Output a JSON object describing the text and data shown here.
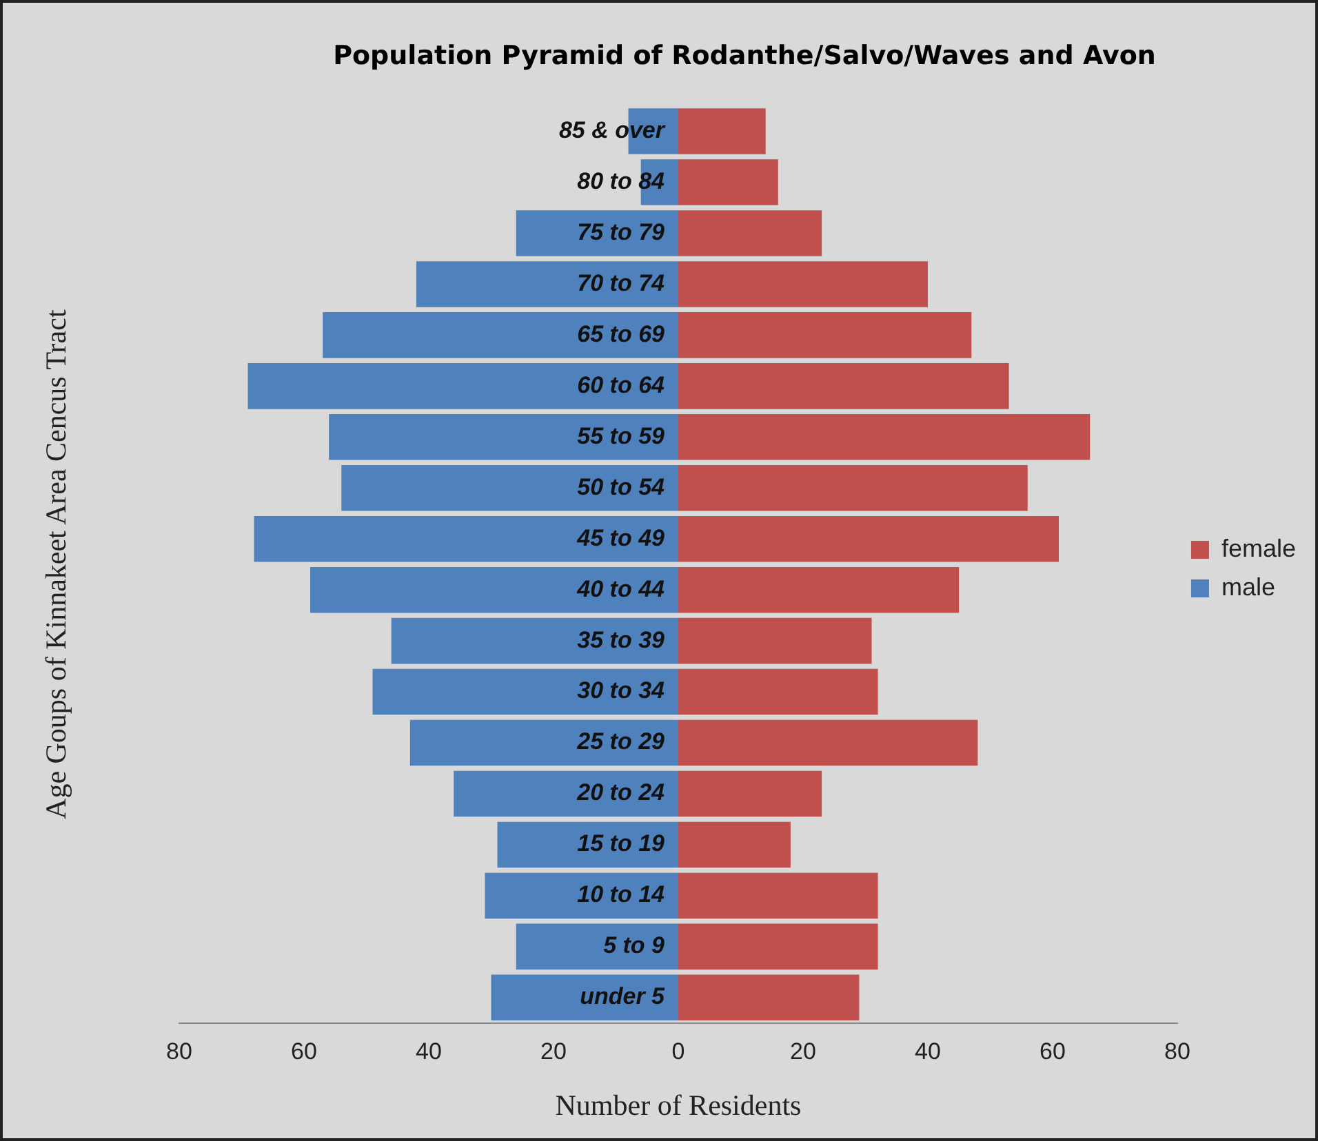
{
  "chart_data": {
    "type": "bar",
    "orientation": "horizontal",
    "stacked": true,
    "title": "Population Pyramid of Rodanthe/Salvo/Waves and Avon",
    "xlabel": "Number of Residents",
    "ylabel": "Age Goups of Kinnakeet Area Cencus Tract",
    "categories": [
      "85 & over",
      "80 to 84",
      "75 to 79",
      "70 to 74",
      "65 to 69",
      "60 to 64",
      "55 to 59",
      "50 to 54",
      "45 to 49",
      "40 to 44",
      "35 to 39",
      "30 to 34",
      "25 to 29",
      "20 to 24",
      "15 to 19",
      "10 to 14",
      "5 to 9",
      "under 5"
    ],
    "series": [
      {
        "name": "female",
        "color": "#c0504d",
        "values": [
          14,
          16,
          23,
          40,
          47,
          53,
          66,
          56,
          61,
          45,
          31,
          32,
          48,
          23,
          18,
          32,
          32,
          29
        ]
      },
      {
        "name": "male",
        "color": "#4f81bd",
        "values": [
          -8,
          -6,
          -26,
          -42,
          -57,
          -69,
          -56,
          -54,
          -68,
          -59,
          -46,
          -49,
          -43,
          -36,
          -29,
          -31,
          -26,
          -30
        ]
      }
    ],
    "xlim": [
      -80,
      80
    ],
    "xticks": [
      {
        "value": -80,
        "label": "80"
      },
      {
        "value": -60,
        "label": "60"
      },
      {
        "value": -40,
        "label": "40"
      },
      {
        "value": -20,
        "label": "20"
      },
      0,
      20,
      40,
      60,
      80
    ],
    "grid": false,
    "legend": "right"
  }
}
